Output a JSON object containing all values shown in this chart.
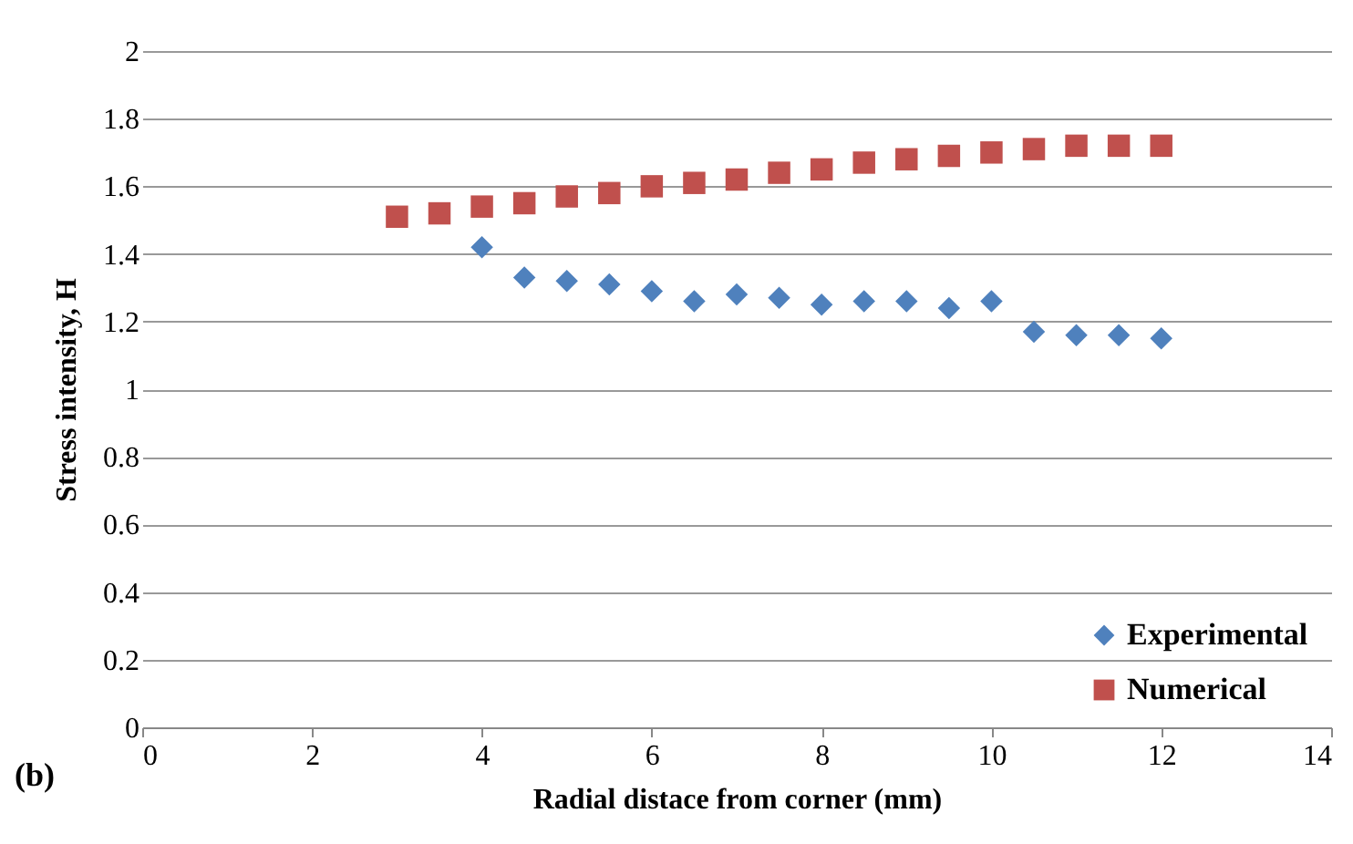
{
  "chart_data": {
    "type": "scatter",
    "xlabel": "Radial distace from corner (mm)",
    "ylabel": "Stress intensity, H",
    "annotations": [
      "(b)"
    ],
    "xlim": [
      0,
      14
    ],
    "xticks": [
      0,
      2,
      4,
      6,
      8,
      10,
      12,
      14
    ],
    "ylim": [
      0,
      2
    ],
    "yticks": [
      0,
      0.2,
      0.4,
      0.6,
      0.8,
      1,
      1.2,
      1.4,
      1.6,
      1.8,
      2
    ],
    "grid": "y",
    "legend": "bottom right",
    "series": [
      {
        "name": "Experimental",
        "color": "#4f81bd",
        "marker": "diamond",
        "x": [
          4,
          4.5,
          5,
          5.5,
          6,
          6.5,
          7,
          7.5,
          8,
          8.5,
          9,
          9.5,
          10,
          10.5,
          11,
          11.5,
          12
        ],
        "values": [
          1.42,
          1.33,
          1.32,
          1.31,
          1.29,
          1.26,
          1.28,
          1.27,
          1.25,
          1.26,
          1.26,
          1.24,
          1.26,
          1.17,
          1.16,
          1.16,
          1.15
        ]
      },
      {
        "name": "Numerical",
        "color": "#c0504d",
        "marker": "square",
        "x": [
          3,
          3.5,
          4,
          4.5,
          5,
          5.5,
          6,
          6.5,
          7,
          7.5,
          8,
          8.5,
          9,
          9.5,
          10,
          10.5,
          11,
          11.5,
          12
        ],
        "values": [
          1.51,
          1.52,
          1.54,
          1.55,
          1.57,
          1.58,
          1.6,
          1.61,
          1.62,
          1.64,
          1.65,
          1.67,
          1.68,
          1.69,
          1.7,
          1.71,
          1.72,
          1.72,
          1.72
        ]
      }
    ]
  }
}
